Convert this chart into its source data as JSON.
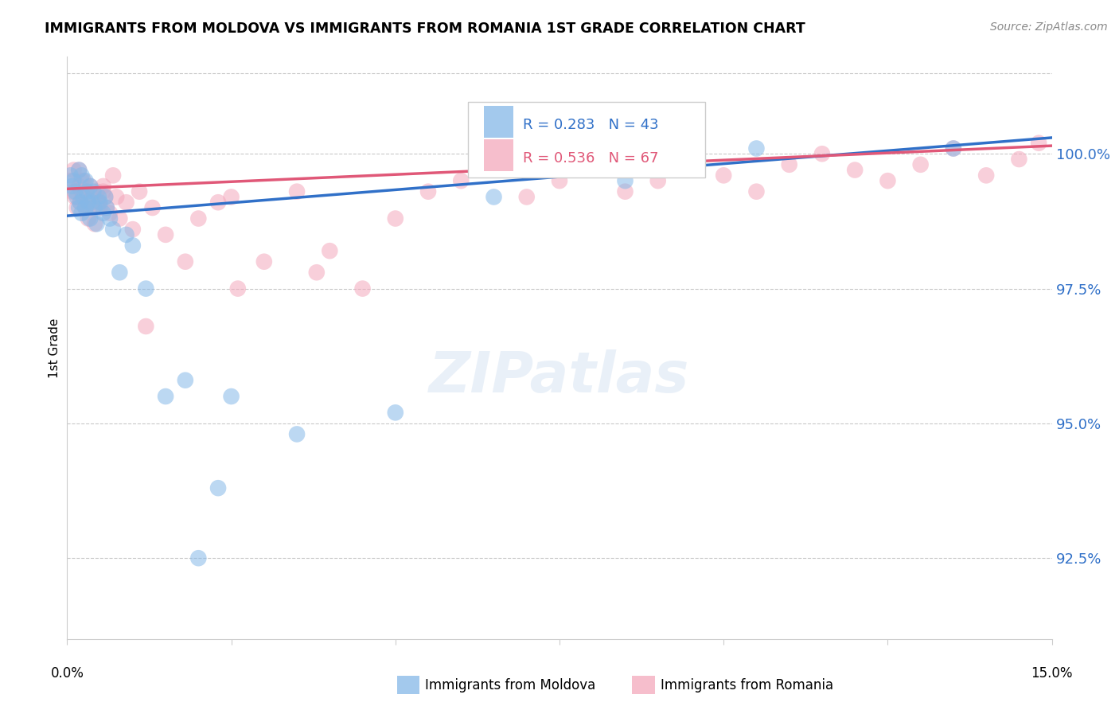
{
  "title": "IMMIGRANTS FROM MOLDOVA VS IMMIGRANTS FROM ROMANIA 1ST GRADE CORRELATION CHART",
  "source": "Source: ZipAtlas.com",
  "ylabel": "1st Grade",
  "xlim": [
    0.0,
    15.0
  ],
  "ylim": [
    91.0,
    101.8
  ],
  "yticks": [
    92.5,
    95.0,
    97.5,
    100.0
  ],
  "ytick_labels": [
    "92.5%",
    "95.0%",
    "97.5%",
    "100.0%"
  ],
  "blue_R": 0.283,
  "blue_N": 43,
  "pink_R": 0.536,
  "pink_N": 67,
  "blue_color": "#85B8E8",
  "pink_color": "#F4A8BC",
  "blue_line_color": "#3070C8",
  "pink_line_color": "#E05878",
  "legend_blue_label": "Immigrants from Moldova",
  "legend_pink_label": "Immigrants from Romania",
  "blue_line_y0": 98.85,
  "blue_line_y1": 100.3,
  "pink_line_y0": 99.35,
  "pink_line_y1": 100.15,
  "blue_x": [
    0.05,
    0.08,
    0.1,
    0.12,
    0.15,
    0.18,
    0.2,
    0.22,
    0.25,
    0.28,
    0.3,
    0.32,
    0.35,
    0.38,
    0.4,
    0.42,
    0.45,
    0.48,
    0.5,
    0.55,
    0.58,
    0.6,
    0.65,
    0.7,
    0.8,
    0.9,
    1.0,
    1.2,
    1.5,
    2.0,
    2.5,
    3.5,
    5.0,
    6.5,
    8.5,
    10.5,
    13.5,
    1.8,
    2.3,
    0.35,
    0.28,
    0.22,
    0.18
  ],
  "blue_y": [
    99.6,
    99.4,
    99.5,
    99.3,
    99.2,
    99.0,
    99.1,
    98.9,
    99.2,
    99.0,
    99.3,
    99.1,
    98.8,
    99.1,
    99.3,
    99.0,
    98.7,
    99.2,
    99.1,
    98.9,
    99.2,
    99.0,
    98.8,
    98.6,
    97.8,
    98.5,
    98.3,
    97.5,
    95.5,
    92.5,
    95.5,
    94.8,
    95.2,
    99.2,
    99.5,
    100.1,
    100.1,
    95.8,
    93.8,
    99.4,
    99.5,
    99.6,
    99.7
  ],
  "pink_x": [
    0.05,
    0.08,
    0.1,
    0.12,
    0.15,
    0.18,
    0.2,
    0.22,
    0.25,
    0.28,
    0.3,
    0.32,
    0.35,
    0.38,
    0.4,
    0.42,
    0.45,
    0.48,
    0.5,
    0.55,
    0.58,
    0.6,
    0.65,
    0.7,
    0.75,
    0.8,
    0.9,
    1.0,
    1.1,
    1.3,
    1.5,
    1.8,
    2.0,
    2.3,
    2.6,
    3.0,
    3.5,
    4.0,
    4.5,
    5.0,
    5.5,
    6.0,
    6.5,
    7.0,
    7.5,
    8.0,
    8.5,
    9.0,
    9.5,
    10.0,
    10.5,
    11.0,
    11.5,
    12.0,
    12.5,
    13.0,
    13.5,
    14.0,
    14.5,
    14.8,
    0.28,
    0.22,
    0.18,
    2.5,
    3.8,
    1.2,
    0.55
  ],
  "pink_y": [
    99.5,
    99.3,
    99.7,
    99.2,
    99.0,
    99.4,
    99.1,
    99.3,
    99.5,
    99.0,
    99.2,
    98.8,
    99.4,
    99.2,
    99.0,
    98.7,
    99.3,
    99.1,
    99.0,
    99.4,
    99.2,
    99.0,
    98.9,
    99.6,
    99.2,
    98.8,
    99.1,
    98.6,
    99.3,
    99.0,
    98.5,
    98.0,
    98.8,
    99.1,
    97.5,
    98.0,
    99.3,
    98.2,
    97.5,
    98.8,
    99.3,
    99.5,
    99.7,
    99.2,
    99.5,
    99.7,
    99.3,
    99.5,
    99.8,
    99.6,
    99.3,
    99.8,
    100.0,
    99.7,
    99.5,
    99.8,
    100.1,
    99.6,
    99.9,
    100.2,
    99.0,
    99.5,
    99.7,
    99.2,
    97.8,
    96.8,
    99.3
  ]
}
